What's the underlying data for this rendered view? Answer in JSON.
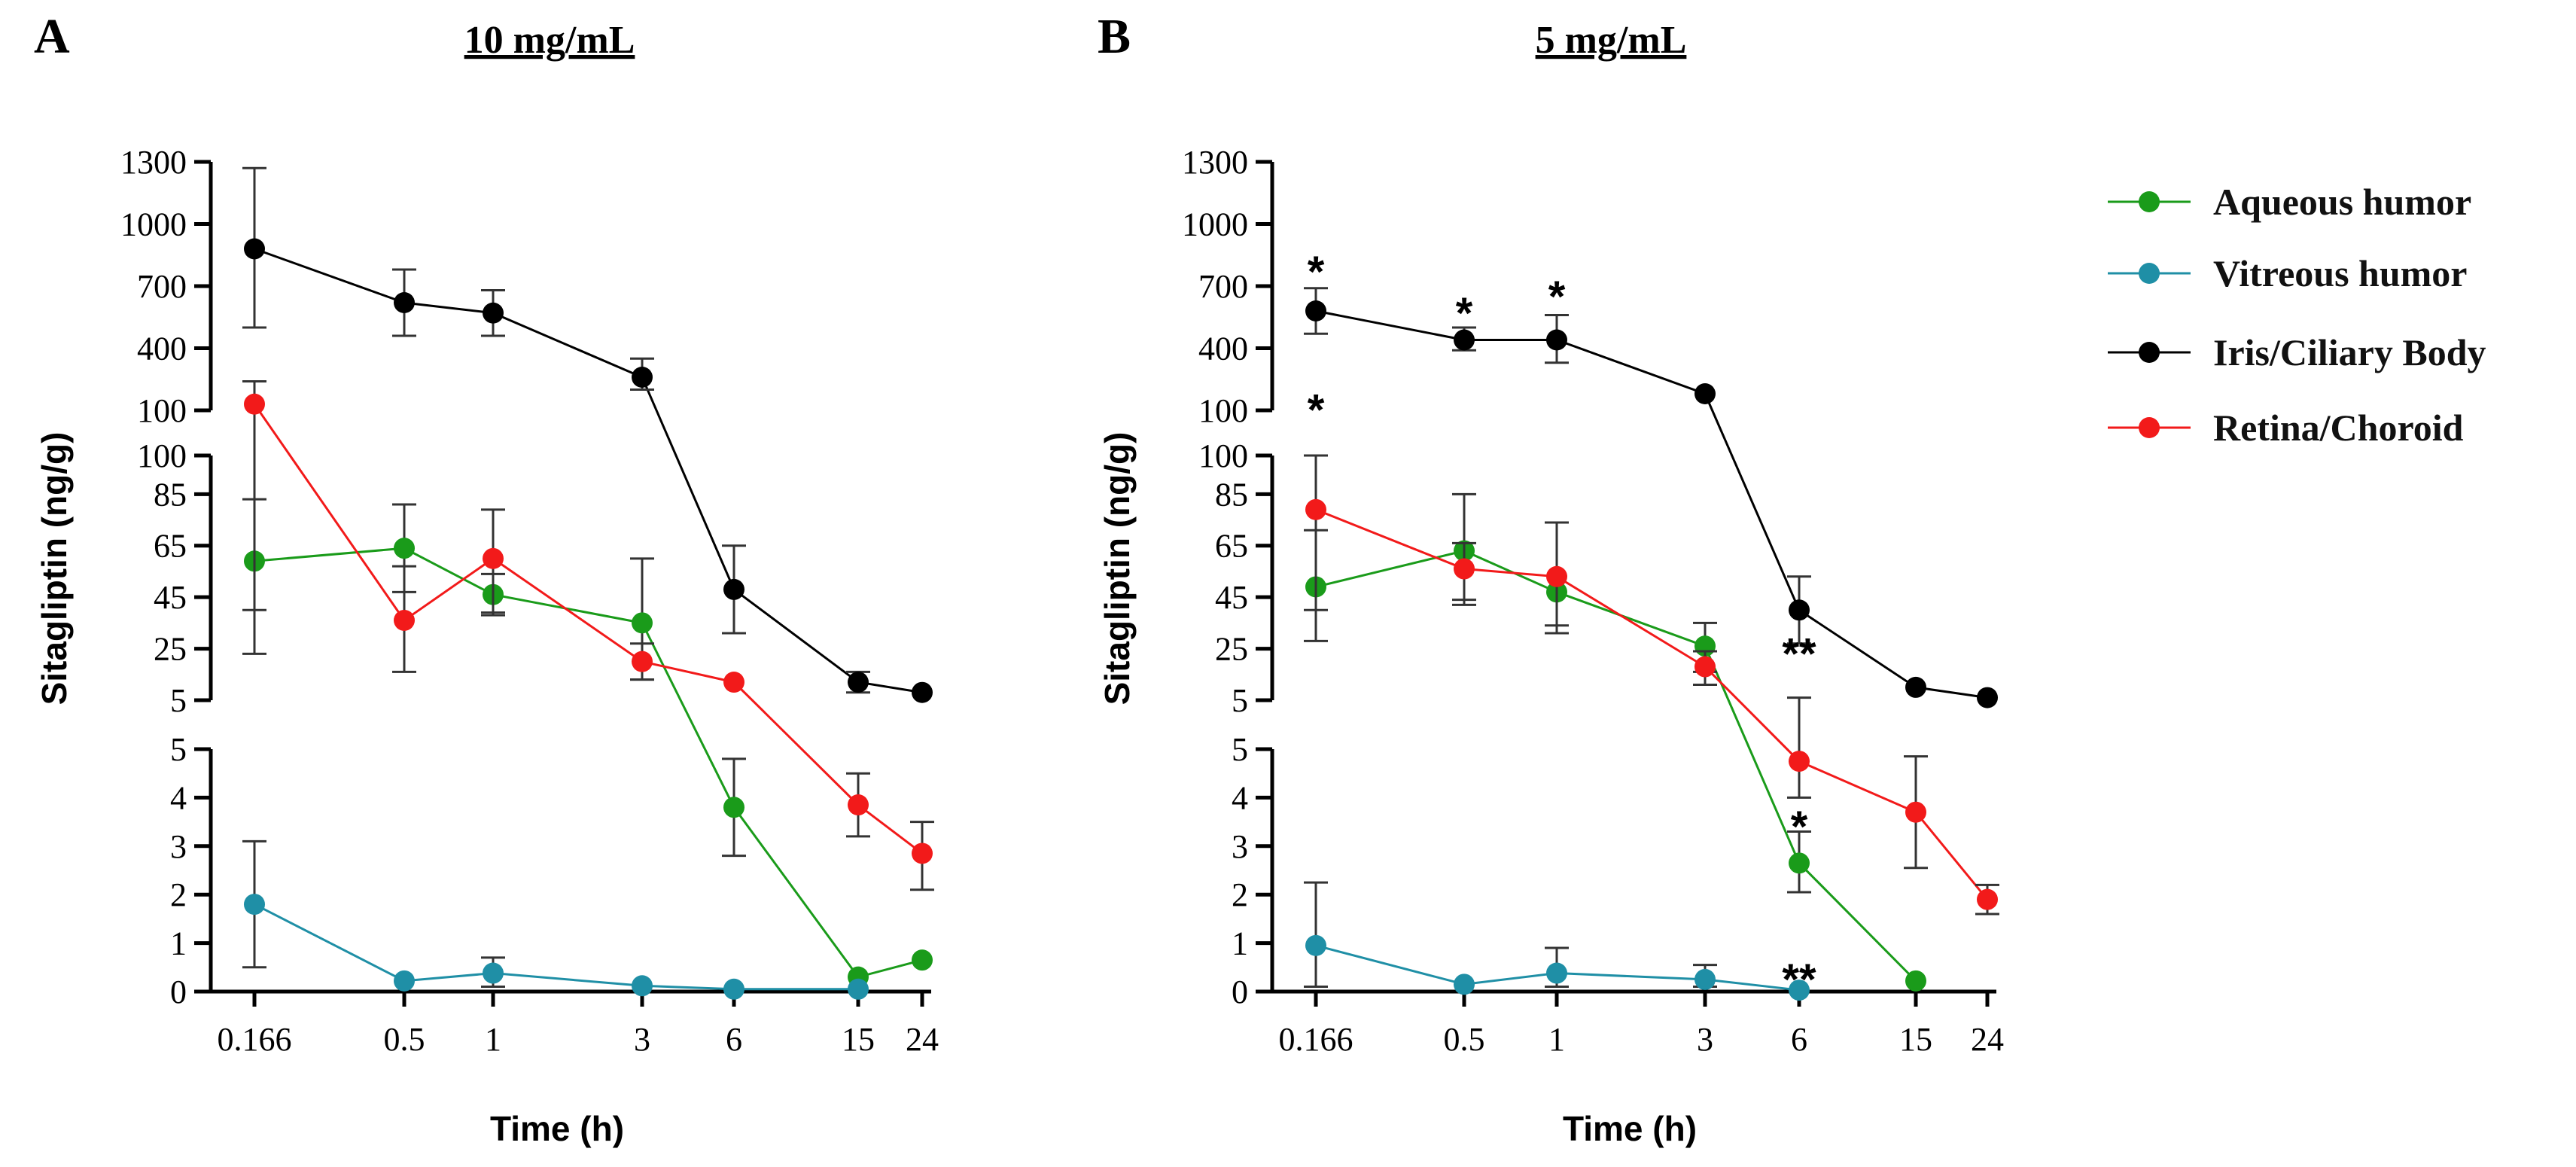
{
  "figure": {
    "legend": [
      {
        "name": "Aqueous humor",
        "color": "#1a9b1a"
      },
      {
        "name": "Vitreous humor",
        "color": "#1f8fa6"
      },
      {
        "name": "Iris/Ciliary Body",
        "color": "#000000"
      },
      {
        "name": "Retina/Choroid",
        "color": "#f21a1a"
      }
    ]
  },
  "chart_data": [
    {
      "type": "line",
      "panel": "A",
      "title": "10 mg/mL",
      "xlabel": "Time (h)",
      "ylabel": "Sitagliptin (ng/g)",
      "x_categories": [
        "0.166",
        "0.5",
        "1",
        "3",
        "6",
        "15",
        "24"
      ],
      "y_segments": [
        {
          "range": [
            100,
            1300
          ],
          "ticks": [
            "100",
            "400",
            "700",
            "1000",
            "1300"
          ]
        },
        {
          "range": [
            5,
            100
          ],
          "ticks": [
            "5",
            "25",
            "45",
            "65",
            "85",
            "100"
          ]
        },
        {
          "range": [
            0,
            5
          ],
          "ticks": [
            "0",
            "1",
            "2",
            "3",
            "4",
            "5"
          ]
        }
      ],
      "series": [
        {
          "name": "Aqueous humor",
          "color": "#1a9b1a",
          "values": [
            59,
            64,
            46,
            35,
            3.8,
            0.3,
            0.65
          ],
          "errors": [
            [
              23,
              83
            ],
            [
              47,
              81
            ],
            [
              38,
              54
            ],
            [
              13,
              60
            ],
            [
              2.8,
              4.8
            ],
            null,
            null
          ]
        },
        {
          "name": "Vitreous humor",
          "color": "#1f8fa6",
          "values": [
            1.8,
            0.22,
            0.38,
            0.12,
            0.05,
            0.05,
            null
          ],
          "errors": [
            [
              0.5,
              3.1
            ],
            null,
            [
              0.1,
              0.7
            ],
            null,
            null,
            null,
            null
          ]
        },
        {
          "name": "Iris/Ciliary Body",
          "color": "#000000",
          "values": [
            880,
            620,
            570,
            260,
            48,
            12,
            8
          ],
          "errors": [
            [
              500,
              1270
            ],
            [
              460,
              780
            ],
            [
              460,
              680
            ],
            [
              200,
              350
            ],
            [
              31,
              65
            ],
            [
              8,
              16
            ],
            null
          ]
        },
        {
          "name": "Retina/Choroid",
          "color": "#f21a1a",
          "values": [
            130,
            36,
            60,
            20,
            12,
            3.85,
            2.85
          ],
          "errors": [
            [
              40,
              240
            ],
            [
              16,
              57
            ],
            [
              39,
              79
            ],
            [
              13,
              27
            ],
            null,
            [
              3.2,
              4.5
            ],
            [
              2.1,
              3.5
            ]
          ]
        }
      ],
      "annotations": []
    },
    {
      "type": "line",
      "panel": "B",
      "title": "5 mg/mL",
      "xlabel": "Time (h)",
      "ylabel": "Sitagliptin (ng/g)",
      "x_categories": [
        "0.166",
        "0.5",
        "1",
        "3",
        "6",
        "15",
        "24"
      ],
      "y_segments": [
        {
          "range": [
            100,
            1300
          ],
          "ticks": [
            "100",
            "400",
            "700",
            "1000",
            "1300"
          ]
        },
        {
          "range": [
            5,
            100
          ],
          "ticks": [
            "5",
            "25",
            "45",
            "65",
            "85",
            "100"
          ]
        },
        {
          "range": [
            0,
            5
          ],
          "ticks": [
            "0",
            "1",
            "2",
            "3",
            "4",
            "5"
          ]
        }
      ],
      "series": [
        {
          "name": "Aqueous humor",
          "color": "#1a9b1a",
          "values": [
            49,
            63,
            47,
            26,
            2.65,
            0.22,
            null
          ],
          "errors": [
            [
              28,
              71
            ],
            [
              42,
              85
            ],
            [
              31,
              74
            ],
            [
              16,
              35
            ],
            [
              2.05,
              3.3
            ],
            null,
            null
          ]
        },
        {
          "name": "Vitreous humor",
          "color": "#1f8fa6",
          "values": [
            0.95,
            0.15,
            0.38,
            0.25,
            0.03,
            null,
            null
          ],
          "errors": [
            [
              0.1,
              2.25
            ],
            null,
            [
              0.1,
              0.9
            ],
            [
              0.1,
              0.55
            ],
            null,
            null,
            null
          ]
        },
        {
          "name": "Iris/Ciliary Body",
          "color": "#000000",
          "values": [
            580,
            440,
            440,
            180,
            40,
            10,
            6
          ],
          "errors": [
            [
              470,
              690
            ],
            [
              390,
              500
            ],
            [
              330,
              560
            ],
            null,
            [
              27,
              53
            ],
            null,
            null
          ]
        },
        {
          "name": "Retina/Choroid",
          "color": "#f21a1a",
          "values": [
            79,
            56,
            53,
            18,
            4.75,
            3.7,
            1.9
          ],
          "errors": [
            [
              40,
              100
            ],
            [
              44,
              66
            ],
            [
              34,
              74
            ],
            [
              11,
              24
            ],
            [
              4,
              6
            ],
            [
              2.55,
              4.85
            ],
            [
              1.6,
              2.2
            ]
          ]
        }
      ],
      "annotations": [
        {
          "x": "0.166",
          "y": 770,
          "text": "*"
        },
        {
          "x": "0.166",
          "y": 101,
          "text": "*"
        },
        {
          "x": "0.5",
          "y": 570,
          "text": "*"
        },
        {
          "x": "1",
          "y": 650,
          "text": "*"
        },
        {
          "x": "6",
          "y": 23,
          "text": "**"
        },
        {
          "x": "6",
          "y": 3.4,
          "text": "*"
        },
        {
          "x": "6",
          "y": 0.25,
          "text": "**"
        }
      ]
    }
  ]
}
